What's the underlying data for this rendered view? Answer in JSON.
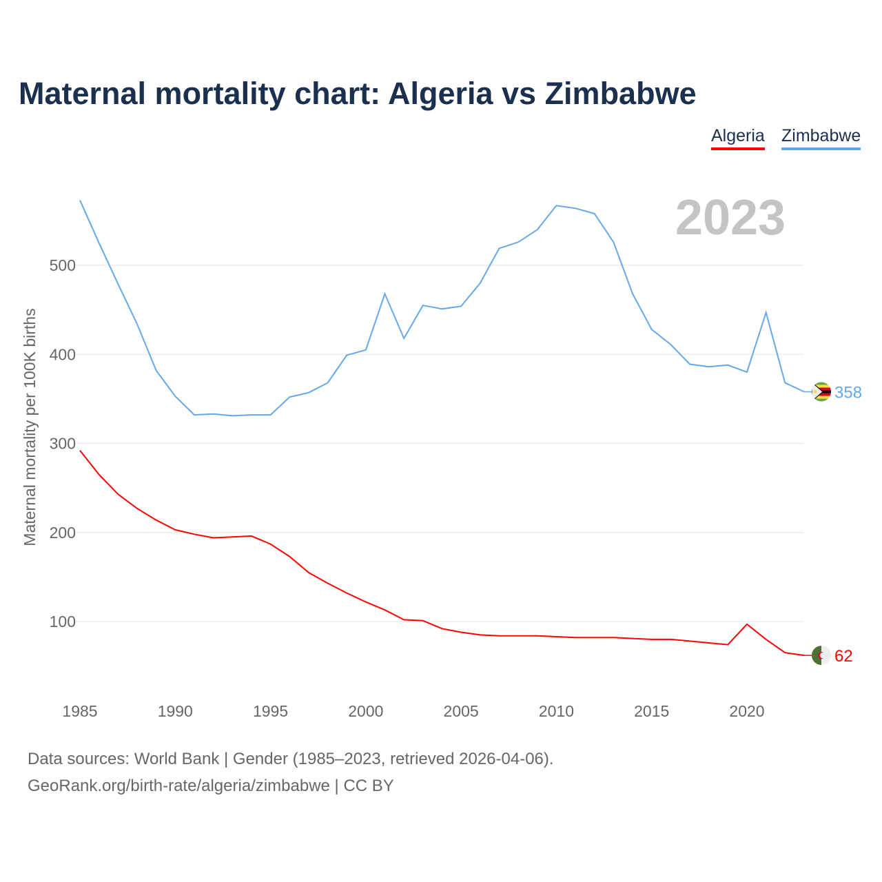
{
  "chart_data": {
    "type": "line",
    "title": "Maternal mortality chart: Algeria vs Zimbabwe",
    "ylabel": "Maternal mortality per 100K births",
    "xlabel": "",
    "year_label": "2023",
    "x": [
      1985,
      1986,
      1987,
      1988,
      1989,
      1990,
      1991,
      1992,
      1993,
      1994,
      1995,
      1996,
      1997,
      1998,
      1999,
      2000,
      2001,
      2002,
      2003,
      2004,
      2005,
      2006,
      2007,
      2008,
      2009,
      2010,
      2011,
      2012,
      2013,
      2014,
      2015,
      2016,
      2017,
      2018,
      2019,
      2020,
      2021,
      2022,
      2023
    ],
    "xticks": [
      "1985",
      "1990",
      "1995",
      "2000",
      "2005",
      "2010",
      "2015",
      "2020"
    ],
    "yticks": [
      "100",
      "200",
      "300",
      "400",
      "500"
    ],
    "ylim": [
      0,
      600
    ],
    "xlim": [
      1985,
      2023
    ],
    "grid": true,
    "legend_position": "top-right",
    "series": [
      {
        "name": "Algeria",
        "color": "#ff0000",
        "end_label": "62",
        "values": [
          292,
          265,
          243,
          227,
          214,
          203,
          198,
          194,
          195,
          196,
          187,
          173,
          155,
          143,
          132,
          122,
          113,
          102,
          101,
          92,
          88,
          85,
          84,
          84,
          84,
          83,
          82,
          82,
          82,
          81,
          80,
          80,
          78,
          76,
          74,
          97,
          80,
          65,
          62
        ]
      },
      {
        "name": "Zimbabwe",
        "color": "#64a8ea",
        "end_label": "358",
        "values": [
          573,
          525,
          479,
          434,
          382,
          353,
          332,
          333,
          331,
          332,
          332,
          352,
          357,
          368,
          399,
          405,
          468,
          418,
          455,
          451,
          454,
          480,
          519,
          526,
          540,
          567,
          564,
          558,
          526,
          468,
          428,
          411,
          389,
          386,
          388,
          380,
          447,
          368,
          358
        ]
      }
    ]
  },
  "footer": {
    "line1": "Data sources: World Bank | Gender (1985–2023, retrieved 2026-04-06).",
    "line2": "GeoRank.org/birth-rate/algeria/zimbabwe | CC BY"
  }
}
